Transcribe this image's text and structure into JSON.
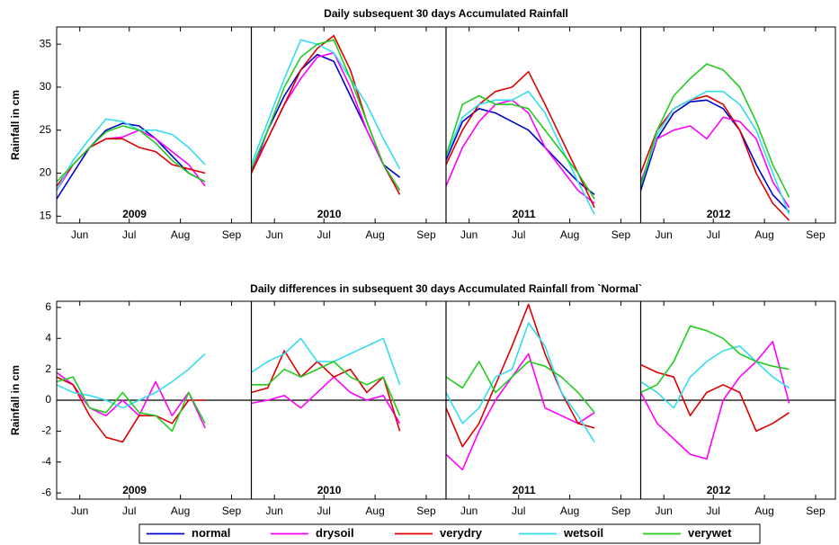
{
  "chart_data": [
    {
      "type": "line",
      "title": "Daily subsequent 30 days Accumulated Rainfall",
      "ylabel": "Rainfall in cm",
      "panels": [
        "2009",
        "2010",
        "2011",
        "2012"
      ],
      "x": [
        -14,
        -4,
        6,
        16,
        26,
        36,
        46,
        56,
        66,
        76
      ],
      "xlim": [
        -14,
        104
      ],
      "xticks": [
        {
          "value": 0,
          "label": "Jun"
        },
        {
          "value": 30,
          "label": "Jul"
        },
        {
          "value": 61,
          "label": "Aug"
        },
        {
          "value": 92,
          "label": "Sep"
        }
      ],
      "ylim": [
        14.2,
        37
      ],
      "yticks": [
        15,
        20,
        25,
        30,
        35
      ],
      "series": [
        {
          "name": "normal",
          "color": "#0000cc",
          "years": [
            [
              17,
              20,
              23,
              25,
              25.8,
              25.5,
              24,
              22,
              20,
              19
            ],
            [
              20,
              25,
              29,
              32,
              33.8,
              33,
              29,
              25,
              21,
              19.5
            ],
            [
              21.5,
              26,
              27.5,
              27,
              26,
              25,
              23,
              21,
              19,
              17.5
            ],
            [
              18,
              24,
              27,
              28.3,
              28.5,
              27.5,
              25,
              21,
              17.5,
              15.5
            ]
          ]
        },
        {
          "name": "drysoil",
          "color": "#ff00ff",
          "years": [
            [
              18,
              21,
              23,
              24,
              24.2,
              25,
              24,
              22.5,
              21,
              18.5
            ],
            [
              20.5,
              24,
              28,
              31,
              33.5,
              34,
              30,
              25,
              21,
              18
            ],
            [
              18.5,
              23,
              26,
              28,
              28.5,
              27,
              23,
              20.5,
              18,
              16.5
            ],
            [
              19,
              24,
              25,
              25.5,
              24,
              26.5,
              26,
              24,
              19,
              16
            ]
          ]
        },
        {
          "name": "verydry",
          "color": "#dd0000",
          "years": [
            [
              18.5,
              21,
              23,
              24,
              24,
              23,
              22.5,
              21,
              20.5,
              20
            ],
            [
              20,
              24,
              28,
              32,
              34.5,
              36,
              32,
              26,
              21,
              17.5
            ],
            [
              21,
              25,
              28,
              29.5,
              30,
              31.8,
              28,
              24,
              20,
              16
            ],
            [
              20,
              25,
              27.5,
              28.5,
              29,
              28,
              25,
              20,
              16.5,
              14.5
            ]
          ]
        },
        {
          "name": "wetsoil",
          "color": "#33ddee",
          "years": [
            [
              18,
              21.5,
              24,
              26.3,
              26,
              25,
              25,
              24.5,
              23,
              21
            ],
            [
              21,
              26,
              31,
              35.5,
              35,
              34,
              31,
              28,
              24,
              20.5
            ],
            [
              22,
              26.5,
              28,
              28.5,
              28.5,
              29.5,
              27,
              23,
              19,
              15.2
            ],
            [
              18.5,
              24.5,
              27.5,
              28.5,
              29.5,
              29.5,
              28,
              25,
              20,
              15.2
            ]
          ]
        },
        {
          "name": "verywet",
          "color": "#22cc22",
          "years": [
            [
              19,
              21,
              23,
              24.8,
              25.5,
              25,
              23.5,
              21.5,
              20,
              19
            ],
            [
              20.5,
              25,
              30,
              33.5,
              35,
              35.5,
              31,
              26,
              21,
              18
            ],
            [
              22,
              28,
              29,
              28,
              28,
              27.5,
              25,
              22.5,
              20,
              17
            ],
            [
              18.5,
              25,
              29,
              31,
              32.7,
              32,
              30,
              26,
              21,
              17.2
            ]
          ]
        }
      ]
    },
    {
      "type": "line",
      "title": "Daily differences in subsequent 30 days Accumulated Rainfall from `Normal`",
      "ylabel": "Rainfall in cm",
      "panels": [
        "2009",
        "2010",
        "2011",
        "2012"
      ],
      "x": [
        -14,
        -4,
        6,
        16,
        26,
        36,
        46,
        56,
        66,
        76
      ],
      "xlim": [
        -14,
        104
      ],
      "xticks": [
        {
          "value": 0,
          "label": "Jun"
        },
        {
          "value": 30,
          "label": "Jul"
        },
        {
          "value": 61,
          "label": "Aug"
        },
        {
          "value": 92,
          "label": "Sep"
        }
      ],
      "ylim": [
        -6.4,
        6.4
      ],
      "yticks": [
        -6,
        -4,
        -2,
        0,
        2,
        4,
        6
      ],
      "zero_line": true,
      "series": [
        {
          "color": "#ff00ff",
          "years": [
            [
              1.8,
              1,
              -0.5,
              -1,
              0,
              -1,
              1.2,
              -1,
              0.5,
              -1.8
            ],
            [
              -0.2,
              0,
              0.3,
              -0.5,
              0.5,
              1.5,
              0.5,
              0,
              0.3,
              -1.5
            ],
            [
              -3.5,
              -4.5,
              -2,
              0,
              1.5,
              3,
              -0.5,
              -1,
              -1.5,
              -0.8
            ],
            [
              0.5,
              -1.5,
              -2.5,
              -3.5,
              -3.8,
              0,
              1.5,
              2.5,
              3.8,
              -0.2
            ]
          ]
        },
        {
          "color": "#dd0000",
          "years": [
            [
              1.5,
              1,
              -1,
              -2.4,
              -2.7,
              -1,
              -1,
              -1.5,
              0,
              0
            ],
            [
              0.5,
              0.8,
              3.2,
              1.5,
              2.5,
              1.5,
              2,
              0.5,
              1.5,
              -2
            ],
            [
              -0.5,
              -3,
              -1.5,
              1,
              3.5,
              6.2,
              3,
              0.5,
              -1.5,
              -1.8
            ],
            [
              2.3,
              1.8,
              1.5,
              -1,
              0.5,
              1,
              0.5,
              -2,
              -1.5,
              -0.8
            ]
          ]
        },
        {
          "color": "#33ddee",
          "years": [
            [
              1,
              0.5,
              0.3,
              0,
              -0.5,
              0,
              0.5,
              1.2,
              2,
              3
            ],
            [
              1.8,
              2.5,
              3,
              4,
              2.5,
              2.5,
              3,
              3.5,
              4,
              1
            ],
            [
              0.5,
              -1.5,
              -0.5,
              1.5,
              2,
              5,
              3.5,
              0.5,
              -1,
              -2.7
            ],
            [
              1.2,
              0.5,
              -0.5,
              1.5,
              2.5,
              3.2,
              3.5,
              2.5,
              1.5,
              0.8
            ]
          ]
        },
        {
          "color": "#22cc22",
          "years": [
            [
              1.2,
              1.5,
              -0.5,
              -0.8,
              0.5,
              -0.8,
              -1,
              -2,
              0.5,
              -1.5
            ],
            [
              1,
              1,
              2,
              1.5,
              2,
              2.5,
              1.5,
              1,
              1.5,
              -1
            ],
            [
              1.5,
              0.8,
              2.5,
              0.5,
              1.5,
              2.5,
              2.2,
              1.5,
              0.5,
              -0.8
            ],
            [
              0.5,
              1,
              2.5,
              4.8,
              4.5,
              4,
              3,
              2.5,
              2.2,
              2
            ]
          ]
        }
      ]
    }
  ]
}
